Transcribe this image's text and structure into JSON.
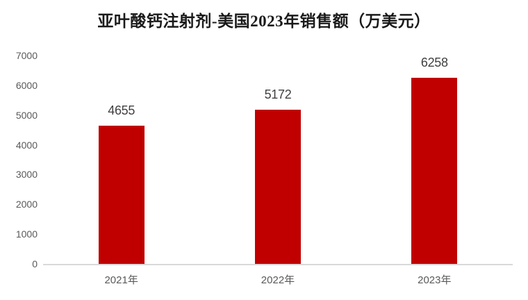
{
  "chart_data": {
    "type": "bar",
    "title": "亚叶酸钙注射剂-美国2023年销售额（万美元）",
    "categories": [
      "2021年",
      "2022年",
      "2023年"
    ],
    "values": [
      4655,
      5172,
      6258
    ],
    "data_labels": [
      "4655",
      "5172",
      "6258"
    ],
    "xlabel": "",
    "ylabel": "",
    "ylim": [
      0,
      7000
    ],
    "yticks": [
      0,
      1000,
      2000,
      3000,
      4000,
      5000,
      6000,
      7000
    ],
    "grid": false,
    "legend": "none",
    "colors": {
      "bar": "#c00000",
      "title_text": "#1a1a1a",
      "tick_label": "#595959",
      "category_label": "#595959",
      "data_label": "#404040",
      "axis_line": "#d9d9d9",
      "background": "#ffffff"
    }
  }
}
